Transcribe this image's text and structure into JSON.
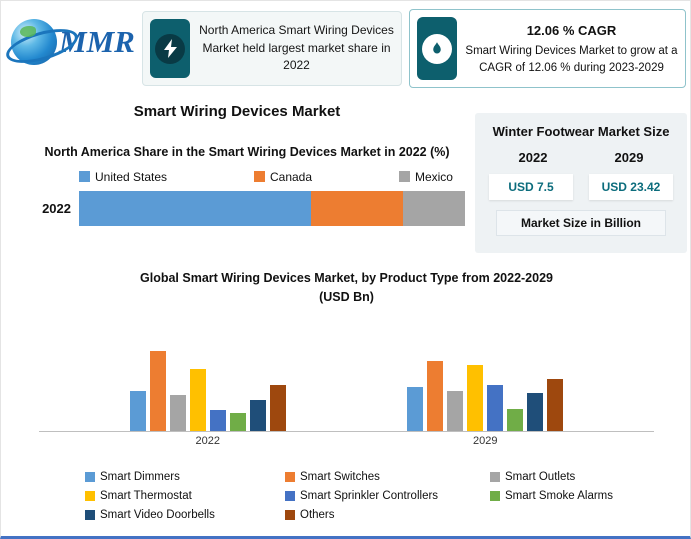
{
  "logo": {
    "text": "MMR"
  },
  "header": {
    "highlight_box": {
      "text": "North America Smart Wiring Devices Market held largest market share in 2022"
    },
    "cagr_box": {
      "title": "12.06 % CAGR",
      "text": "Smart Wiring Devices Market to grow at a CAGR of 12.06 % during 2023-2029"
    }
  },
  "page_title": "Smart Wiring Devices Market",
  "side_panel": {
    "title": "Winter Footwear Market Size",
    "year_start": "2022",
    "year_end": "2029",
    "value_start": "USD 7.5",
    "value_end": "USD 23.42",
    "footnote": "Market Size in Billion"
  },
  "colors": {
    "accent_teal": "#0d5f6d",
    "value_text_teal": "#0b6c7c",
    "bottom_rule_blue": "#4472C4"
  },
  "chart_data": [
    {
      "type": "bar",
      "subtype": "horizontal-stacked",
      "title": "North America Share in the Smart Wiring Devices Market in 2022 (%)",
      "category": "2022",
      "unit": "%",
      "series": [
        {
          "name": "United States",
          "value": 60,
          "color": "#5B9BD5"
        },
        {
          "name": "Canada",
          "value": 24,
          "color": "#ED7D31"
        },
        {
          "name": "Mexico",
          "value": 16,
          "color": "#A5A5A5"
        }
      ],
      "xlim": [
        0,
        100
      ],
      "legend_position": "top"
    },
    {
      "type": "bar",
      "subtype": "grouped-vertical",
      "title": "Global Smart Wiring Devices Market, by Product Type from 2022-2029  (USD Bn)",
      "categories": [
        "2022",
        "2029"
      ],
      "ylabel": "USD Bn",
      "ylim": [
        0,
        2.8
      ],
      "grid": false,
      "legend_position": "bottom",
      "series": [
        {
          "name": "Smart Dimmers",
          "color": "#5B9BD5",
          "values": [
            1.0,
            1.1
          ]
        },
        {
          "name": "Smart Switches",
          "color": "#ED7D31",
          "values": [
            2.0,
            1.75
          ]
        },
        {
          "name": "Smart Outlets",
          "color": "#A5A5A5",
          "values": [
            0.9,
            1.0
          ]
        },
        {
          "name": "Smart Thermostat",
          "color": "#FFC000",
          "values": [
            1.55,
            1.65
          ]
        },
        {
          "name": "Smart Sprinkler Controllers",
          "color": "#4472C4",
          "values": [
            0.52,
            1.14
          ]
        },
        {
          "name": "Smart Smoke Alarms",
          "color": "#70AD47",
          "values": [
            0.45,
            0.55
          ]
        },
        {
          "name": "Smart Video Doorbells",
          "color": "#1F4E79",
          "values": [
            0.78,
            0.96
          ]
        },
        {
          "name": "Others",
          "color": "#9E480E",
          "values": [
            1.15,
            1.3
          ]
        }
      ]
    }
  ]
}
